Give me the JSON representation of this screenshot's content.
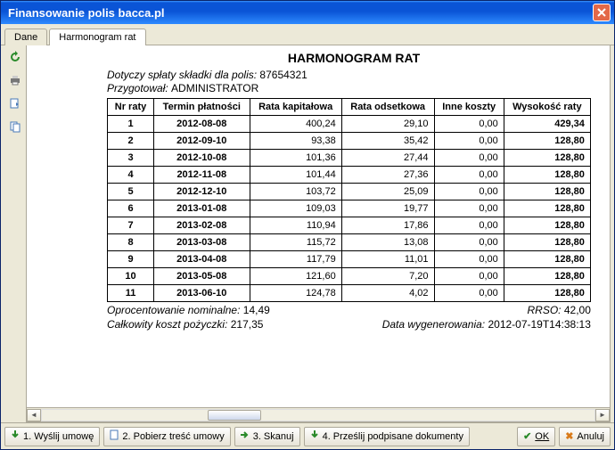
{
  "window": {
    "title": "Finansowanie polis bacca.pl"
  },
  "tabs": {
    "t0": "Dane",
    "t1": "Harmonogram rat"
  },
  "doc": {
    "heading": "HARMONOGRAM RAT",
    "meta1_label": "Dotyczy spłaty składki dla polis:",
    "meta1_value": "87654321",
    "meta2_label": "Przygotował:",
    "meta2_value": "ADMINISTRATOR",
    "columns": {
      "c0": "Nr raty",
      "c1": "Termin płatności",
      "c2": "Rata kapitałowa",
      "c3": "Rata odsetkowa",
      "c4": "Inne koszty",
      "c5": "Wysokość raty"
    },
    "rows": [
      {
        "nr": "1",
        "term": "2012-08-08",
        "cap": "400,24",
        "ods": "29,10",
        "inne": "0,00",
        "wys": "429,34"
      },
      {
        "nr": "2",
        "term": "2012-09-10",
        "cap": "93,38",
        "ods": "35,42",
        "inne": "0,00",
        "wys": "128,80"
      },
      {
        "nr": "3",
        "term": "2012-10-08",
        "cap": "101,36",
        "ods": "27,44",
        "inne": "0,00",
        "wys": "128,80"
      },
      {
        "nr": "4",
        "term": "2012-11-08",
        "cap": "101,44",
        "ods": "27,36",
        "inne": "0,00",
        "wys": "128,80"
      },
      {
        "nr": "5",
        "term": "2012-12-10",
        "cap": "103,72",
        "ods": "25,09",
        "inne": "0,00",
        "wys": "128,80"
      },
      {
        "nr": "6",
        "term": "2013-01-08",
        "cap": "109,03",
        "ods": "19,77",
        "inne": "0,00",
        "wys": "128,80"
      },
      {
        "nr": "7",
        "term": "2013-02-08",
        "cap": "110,94",
        "ods": "17,86",
        "inne": "0,00",
        "wys": "128,80"
      },
      {
        "nr": "8",
        "term": "2013-03-08",
        "cap": "115,72",
        "ods": "13,08",
        "inne": "0,00",
        "wys": "128,80"
      },
      {
        "nr": "9",
        "term": "2013-04-08",
        "cap": "117,79",
        "ods": "11,01",
        "inne": "0,00",
        "wys": "128,80"
      },
      {
        "nr": "10",
        "term": "2013-05-08",
        "cap": "121,60",
        "ods": "7,20",
        "inne": "0,00",
        "wys": "128,80"
      },
      {
        "nr": "11",
        "term": "2013-06-10",
        "cap": "124,78",
        "ods": "4,02",
        "inne": "0,00",
        "wys": "128,80"
      }
    ],
    "footer": {
      "opr_label": "Oprocentowanie nominalne:",
      "opr_value": "14,49",
      "rrso_label": "RRSO:",
      "rrso_value": "42,00",
      "koszt_label": "Całkowity koszt pożyczki:",
      "koszt_value": "217,35",
      "gen_label": "Data wygenerowania:",
      "gen_value": "2012-07-19T14:38:13"
    }
  },
  "buttons": {
    "b1": "1. Wyślij umowę",
    "b2": "2. Pobierz treść umowy",
    "b3": "3. Skanuj",
    "b4": "4. Prześlij podpisane dokumenty",
    "ok": "OK",
    "cancel": "Anuluj"
  }
}
